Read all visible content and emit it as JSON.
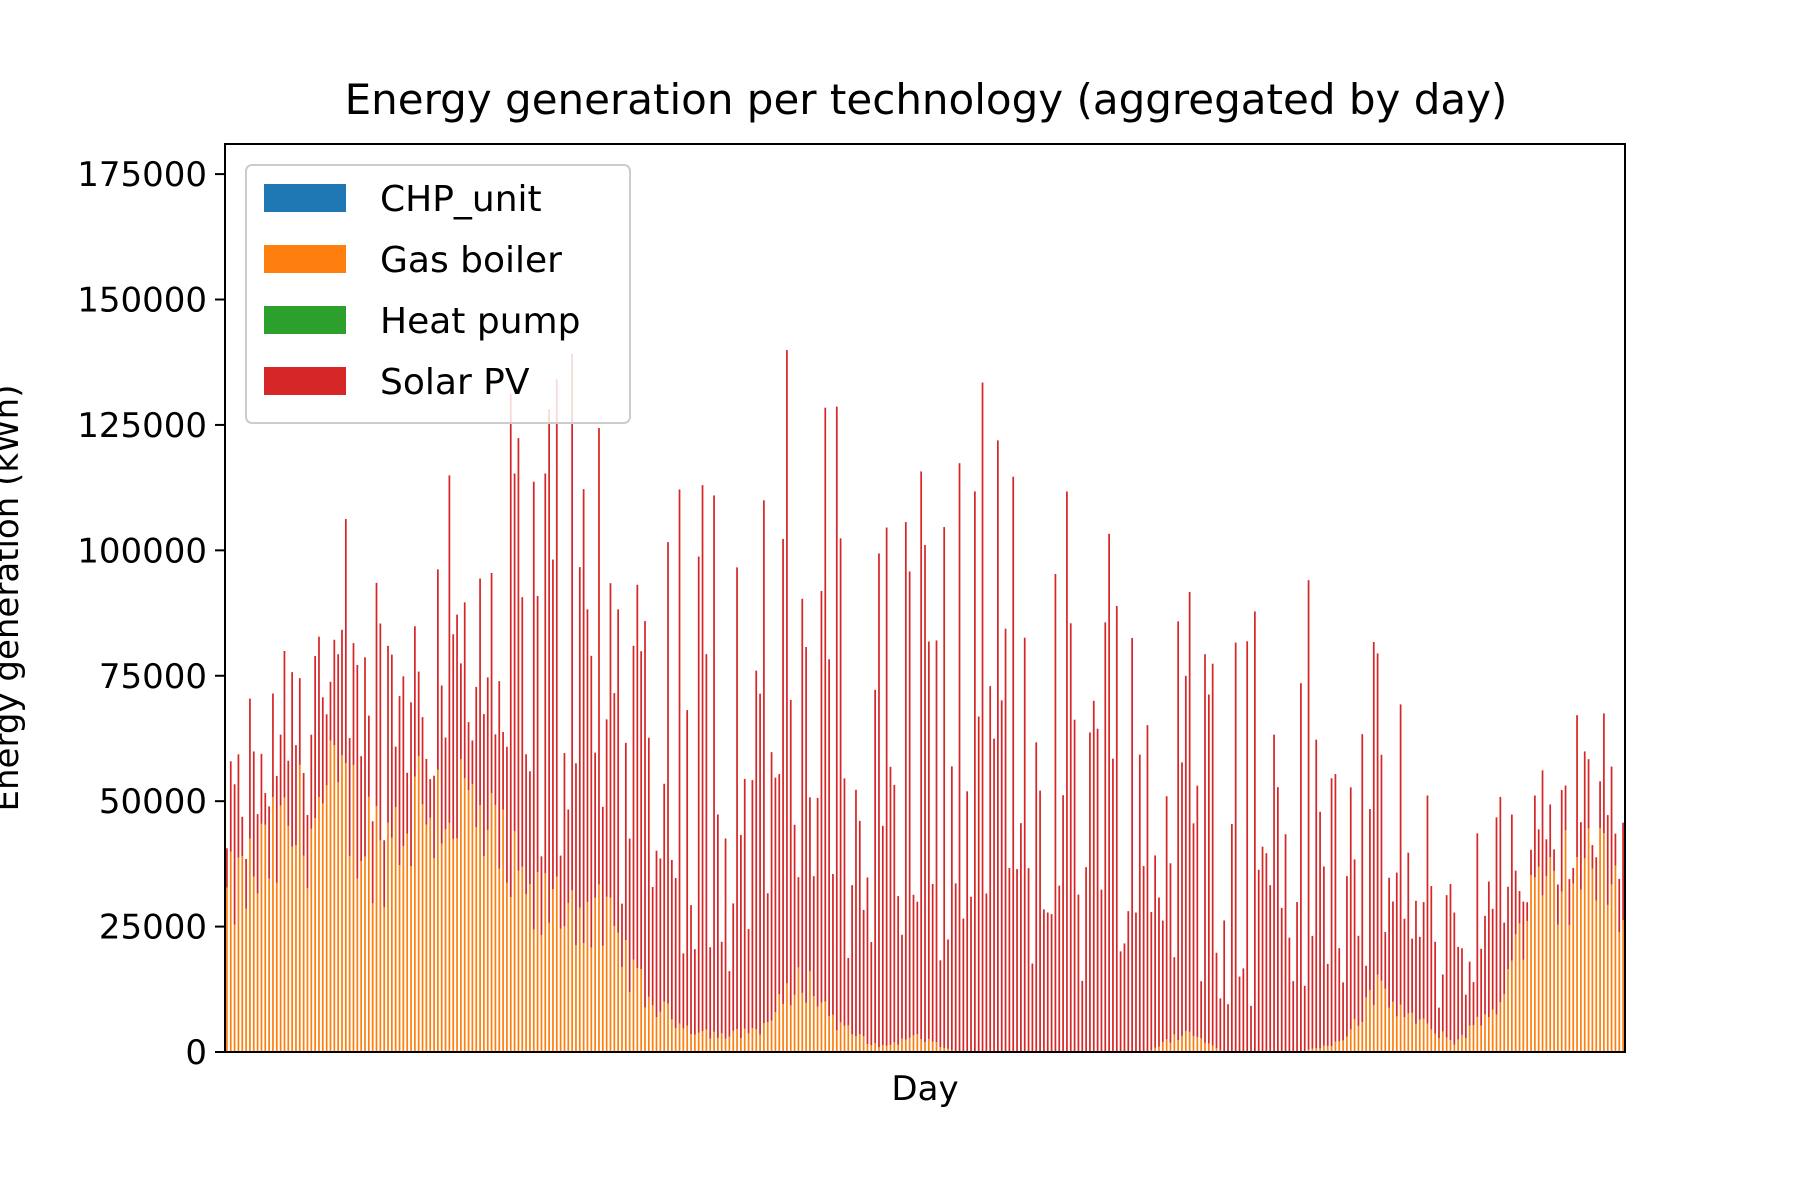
{
  "chart_data": {
    "type": "bar",
    "stacked": true,
    "title": "Energy generation per technology (aggregated by day)",
    "xlabel": "Day",
    "ylabel": "Energy generation (kWh)",
    "ylim": [
      0,
      181000
    ],
    "yticks": [
      0,
      25000,
      50000,
      75000,
      100000,
      125000,
      150000,
      175000
    ],
    "ytick_labels": [
      "0",
      "25000",
      "50000",
      "75000",
      "100000",
      "125000",
      "150000",
      "175000"
    ],
    "legend_position": "top-left",
    "grid": false,
    "series": [
      {
        "name": "CHP_unit",
        "color": "#1f77b4",
        "anchors": [
          [
            0,
            0
          ],
          [
            364,
            0
          ]
        ]
      },
      {
        "name": "Gas boiler",
        "color": "#ff7f0e",
        "anchors": [
          [
            0,
            30000
          ],
          [
            10,
            38000
          ],
          [
            20,
            46000
          ],
          [
            30,
            50000
          ],
          [
            40,
            40000
          ],
          [
            50,
            50000
          ],
          [
            60,
            50000
          ],
          [
            70,
            40000
          ],
          [
            80,
            28000
          ],
          [
            90,
            30000
          ],
          [
            100,
            24000
          ],
          [
            110,
            10000
          ],
          [
            120,
            5000
          ],
          [
            130,
            3000
          ],
          [
            140,
            5000
          ],
          [
            150,
            15000
          ],
          [
            160,
            5000
          ],
          [
            170,
            1000
          ],
          [
            180,
            3000
          ],
          [
            190,
            0
          ],
          [
            200,
            0
          ],
          [
            210,
            0
          ],
          [
            220,
            0
          ],
          [
            230,
            0
          ],
          [
            240,
            0
          ],
          [
            250,
            4000
          ],
          [
            260,
            0
          ],
          [
            270,
            0
          ],
          [
            280,
            0
          ],
          [
            290,
            2000
          ],
          [
            300,
            12000
          ],
          [
            310,
            6000
          ],
          [
            320,
            2000
          ],
          [
            330,
            8000
          ],
          [
            340,
            28000
          ],
          [
            350,
            36000
          ],
          [
            355,
            38000
          ],
          [
            364,
            30000
          ]
        ]
      },
      {
        "name": "Heat pump",
        "color": "#2ca02c",
        "anchors": [
          [
            0,
            0
          ],
          [
            364,
            0
          ]
        ]
      },
      {
        "name": "Solar PV",
        "color": "#d62728",
        "anchors": [
          [
            0,
            15000
          ],
          [
            10,
            25000
          ],
          [
            15,
            30000
          ],
          [
            20,
            40000
          ],
          [
            30,
            25000
          ],
          [
            40,
            30000
          ],
          [
            50,
            35000
          ],
          [
            60,
            40000
          ],
          [
            70,
            50000
          ],
          [
            80,
            60000
          ],
          [
            90,
            70000
          ],
          [
            100,
            60000
          ],
          [
            110,
            60000
          ],
          [
            120,
            70000
          ],
          [
            130,
            75000
          ],
          [
            140,
            70000
          ],
          [
            150,
            60000
          ],
          [
            160,
            70000
          ],
          [
            170,
            70000
          ],
          [
            180,
            70000
          ],
          [
            190,
            65000
          ],
          [
            200,
            65000
          ],
          [
            210,
            70000
          ],
          [
            220,
            70000
          ],
          [
            230,
            65000
          ],
          [
            240,
            60000
          ],
          [
            250,
            60000
          ],
          [
            260,
            55000
          ],
          [
            270,
            55000
          ],
          [
            280,
            50000
          ],
          [
            290,
            45000
          ],
          [
            300,
            35000
          ],
          [
            310,
            30000
          ],
          [
            320,
            25000
          ],
          [
            330,
            25000
          ],
          [
            340,
            15000
          ],
          [
            350,
            15000
          ],
          [
            364,
            15000
          ]
        ]
      }
    ],
    "days": 365
  }
}
